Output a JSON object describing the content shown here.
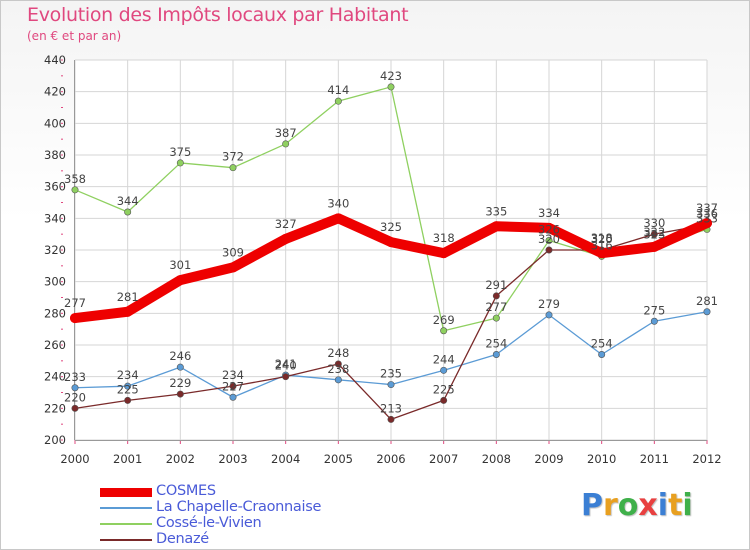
{
  "header": {
    "title": "Evolution des Impôts locaux par Habitant",
    "subtitle": "(en € et par an)"
  },
  "logo": {
    "letters": [
      "P",
      "r",
      "o",
      "x",
      "i",
      "t",
      "i"
    ],
    "colors": [
      "#3b7fd4",
      "#e8a020",
      "#3fb04a",
      "#e84040",
      "#3b7fd4",
      "#e8a020",
      "#3fb04a"
    ]
  },
  "chart_data": {
    "type": "line",
    "x": [
      "2000",
      "2001",
      "2002",
      "2003",
      "2004",
      "2005",
      "2006",
      "2007",
      "2008",
      "2009",
      "2010",
      "2011",
      "2012"
    ],
    "ylim": [
      200,
      440
    ],
    "yticks": [
      "200",
      "220",
      "240",
      "260",
      "280",
      "300",
      "320",
      "340",
      "360",
      "380",
      "400",
      "420",
      "440"
    ],
    "grid": true,
    "legend_position": "bottom-left",
    "series": [
      {
        "name": "COSMES",
        "color": "#ee0000",
        "values": [
          277,
          281,
          301,
          309,
          327,
          340,
          325,
          318,
          335,
          334,
          318,
          322,
          337
        ],
        "labels": [
          "277",
          "281",
          "301",
          "309",
          "327",
          "340",
          "325",
          "318",
          "335",
          "334",
          "318",
          "322",
          "337"
        ]
      },
      {
        "name": "La Chapelle-Craonnaise",
        "color": "#5b9bd5",
        "values": [
          233,
          234,
          246,
          227,
          241,
          238,
          235,
          244,
          254,
          279,
          254,
          275,
          281
        ],
        "labels": [
          "233",
          "234",
          "246",
          "227",
          "241",
          "238",
          "235",
          "244",
          "254",
          "279",
          "254",
          "275",
          "281"
        ]
      },
      {
        "name": "Cossé-le-Vivien",
        "color": "#8fd060",
        "values": [
          358,
          344,
          375,
          372,
          387,
          414,
          423,
          269,
          277,
          326,
          316,
          323,
          333
        ],
        "labels": [
          "358",
          "344",
          "375",
          "372",
          "387",
          "414",
          "423",
          "269",
          "277",
          "326",
          "316",
          "323",
          "333"
        ]
      },
      {
        "name": "Denazé",
        "color": "#7a2a2a",
        "values": [
          220,
          225,
          229,
          234,
          240,
          248,
          213,
          225,
          291,
          320,
          320,
          330,
          336
        ],
        "labels": [
          "220",
          "225",
          "229",
          "234",
          "240",
          "248",
          "213",
          "225",
          "291",
          "320",
          "320",
          "330",
          "336"
        ]
      }
    ]
  }
}
